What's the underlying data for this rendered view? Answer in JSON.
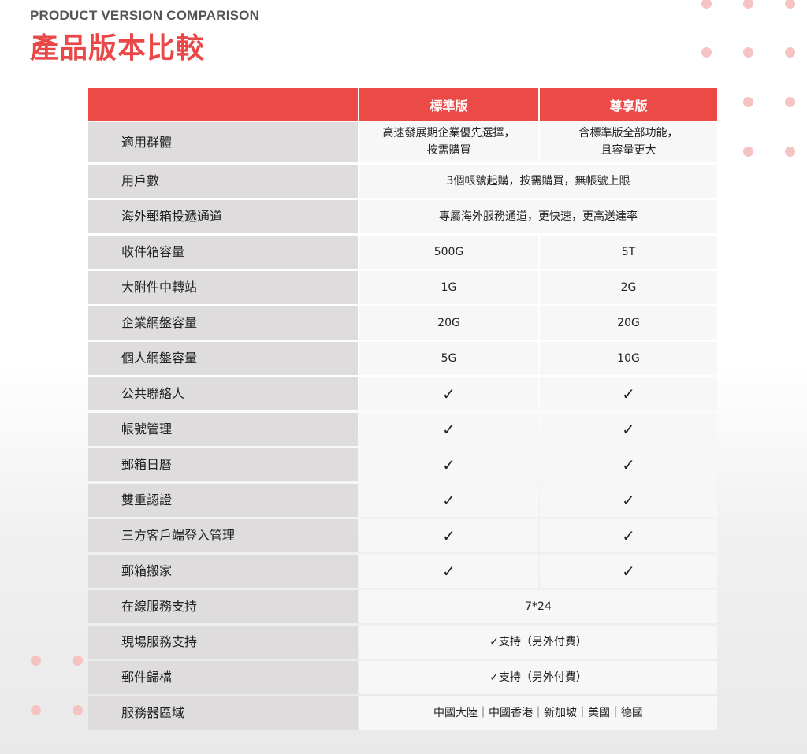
{
  "header": {
    "subtitle": "PRODUCT VERSION COMPARISON",
    "title": "產品版本比較"
  },
  "colors": {
    "accent": "#ec4a46",
    "dot": "#f6c3c3",
    "label_bg": "#dedcdd",
    "cell_bg": "#f7f7f7"
  },
  "table": {
    "columns": [
      "",
      "標準版",
      "尊享版"
    ],
    "rows": [
      {
        "label": "適用群體",
        "standard": "高速發展期企業優先選擇，\n按需購買",
        "premium": "含標準版全部功能，\n且容量更大"
      },
      {
        "label": "用戶數",
        "merged": "3個帳號起購，按需購買，無帳號上限"
      },
      {
        "label": "海外郵箱投遞通道",
        "merged": "專屬海外服務通道，更快速，更高送達率"
      },
      {
        "label": "收件箱容量",
        "standard": "500G",
        "premium": "5T"
      },
      {
        "label": "大附件中轉站",
        "standard": "1G",
        "premium": "2G"
      },
      {
        "label": "企業網盤容量",
        "standard": "20G",
        "premium": "20G"
      },
      {
        "label": "個人網盤容量",
        "standard": "5G",
        "premium": "10G"
      },
      {
        "label": "公共聯絡人",
        "standard": "✓",
        "premium": "✓"
      },
      {
        "label": "帳號管理",
        "standard": "✓",
        "premium": "✓"
      },
      {
        "label": "郵箱日曆",
        "standard": "✓",
        "premium": "✓"
      },
      {
        "label": "雙重認證",
        "standard": "✓",
        "premium": "✓"
      },
      {
        "label": "三方客戶端登入管理",
        "standard": "✓",
        "premium": "✓"
      },
      {
        "label": "郵箱搬家",
        "standard": "✓",
        "premium": "✓"
      },
      {
        "label": "在線服務支持",
        "merged": "7*24"
      },
      {
        "label": "現場服務支持",
        "merged": "✓支持（另外付費）"
      },
      {
        "label": "郵件歸檔",
        "merged": "✓支持（另外付費）"
      },
      {
        "label": "服務器區域",
        "merged": "中國大陸｜中國香港｜新加坡｜美國｜德國"
      }
    ]
  }
}
